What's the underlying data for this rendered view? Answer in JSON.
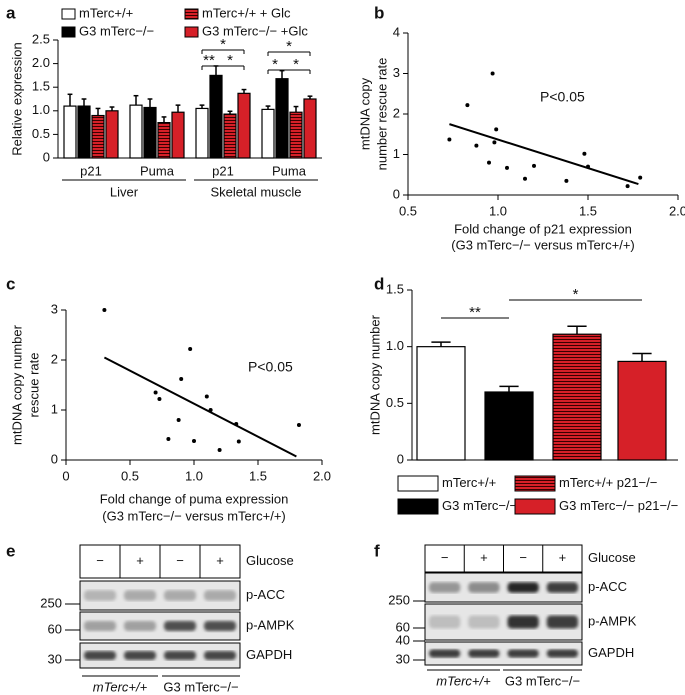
{
  "panel_labels": [
    "a",
    "b",
    "c",
    "d",
    "e",
    "f"
  ],
  "chart_data": [
    {
      "type": "bar",
      "ylabel": "Relative expression",
      "categories": [
        "p21",
        "Puma",
        "p21",
        "Puma"
      ],
      "groups": [
        "Liver",
        "Skeletal muscle"
      ],
      "ylim": [
        0,
        2.5
      ],
      "yticks": [
        0,
        0.5,
        {
          "value": 1,
          "label": "1.0"
        },
        1.5,
        {
          "value": 2,
          "label": "2.0"
        },
        2.5
      ],
      "series": [
        {
          "name": "mTerc+/+",
          "color": "#ffffff",
          "hatch": false,
          "values": [
            1.1,
            1.12,
            1.05,
            1.03
          ],
          "errors": [
            0.25,
            0.2,
            0.07,
            0.07
          ]
        },
        {
          "name": "G3 mTerc−/−",
          "color": "#000000",
          "hatch": false,
          "values": [
            1.1,
            1.07,
            1.75,
            1.68
          ],
          "errors": [
            0.15,
            0.18,
            0.2,
            0.17
          ]
        },
        {
          "name": "mTerc+/+ + Glc",
          "color": "#d62028",
          "hatch": true,
          "values": [
            0.9,
            0.75,
            0.93,
            0.97
          ],
          "errors": [
            0.15,
            0.12,
            0.06,
            0.12
          ]
        },
        {
          "name": "G3 mTerc−/− +Glc",
          "color": "#d62028",
          "hatch": false,
          "values": [
            1.0,
            0.97,
            1.37,
            1.25
          ],
          "errors": [
            0.08,
            0.15,
            0.08,
            0.06
          ]
        }
      ],
      "annotations": [
        "*",
        "**",
        "*",
        "*",
        "*",
        "*"
      ]
    },
    {
      "type": "scatter",
      "ylabel": [
        "mtDNA copy",
        "number rescue rate"
      ],
      "xlabel": [
        "Fold change of p21 expression",
        "(G3 mTerc−/− versus mTerc+/+)"
      ],
      "xlim": [
        0.5,
        2.0
      ],
      "xticks": [
        0.5,
        {
          "value": 1,
          "label": "1.0"
        },
        1.5,
        {
          "value": 2,
          "label": "2.0"
        }
      ],
      "ylim": [
        0,
        4
      ],
      "yticks": [
        0,
        1,
        2,
        3,
        4
      ],
      "x": [
        0.73,
        0.83,
        0.88,
        0.95,
        0.97,
        0.98,
        0.99,
        1.05,
        1.15,
        1.2,
        1.38,
        1.48,
        1.5,
        1.72,
        1.79
      ],
      "y": [
        1.37,
        2.22,
        1.22,
        0.8,
        3.0,
        1.3,
        1.62,
        0.67,
        0.4,
        0.72,
        0.35,
        1.02,
        0.7,
        0.22,
        0.43
      ],
      "fit": {
        "x": [
          0.73,
          1.78
        ],
        "y": [
          1.75,
          0.27
        ]
      },
      "annotation": "P<0.05"
    },
    {
      "type": "scatter",
      "ylabel": [
        "mtDNA copy number",
        "rescue rate"
      ],
      "xlabel": [
        "Fold change of puma expression",
        "(G3 mTerc−/− versus mTerc+/+)"
      ],
      "xlim": [
        0,
        2.0
      ],
      "xticks": [
        0,
        0.5,
        {
          "value": 1,
          "label": "1.0"
        },
        1.5,
        {
          "value": 2,
          "label": "2.0"
        }
      ],
      "ylim": [
        0,
        3
      ],
      "yticks": [
        0,
        1,
        2,
        3
      ],
      "x": [
        0.3,
        0.7,
        0.73,
        0.8,
        0.88,
        0.9,
        0.97,
        1.0,
        1.1,
        1.13,
        1.2,
        1.33,
        1.35,
        1.82
      ],
      "y": [
        3.0,
        1.35,
        1.22,
        0.42,
        0.8,
        1.62,
        2.22,
        0.38,
        1.27,
        1.0,
        0.2,
        0.72,
        0.37,
        0.7
      ],
      "fit": {
        "x": [
          0.3,
          1.8
        ],
        "y": [
          2.05,
          0.07
        ]
      },
      "annotation": "P<0.05"
    },
    {
      "type": "bar",
      "ylabel": "mtDNA copy number",
      "ylim": [
        0,
        1.5
      ],
      "yticks": [
        0,
        0.5,
        {
          "value": 1,
          "label": "1.0"
        },
        1.5
      ],
      "series": [
        {
          "name": "mTerc+/+",
          "color": "#ffffff",
          "hatch": false,
          "values": [
            1.0
          ],
          "errors": [
            0.04
          ]
        },
        {
          "name": "G3 mTerc−/−",
          "color": "#000000",
          "hatch": false,
          "values": [
            0.6
          ],
          "errors": [
            0.05
          ]
        },
        {
          "name": "mTerc+/+  p21−/−",
          "color": "#d62028",
          "hatch": true,
          "values": [
            1.11
          ],
          "errors": [
            0.07
          ]
        },
        {
          "name": "G3 mTerc−/−  p21−/−",
          "color": "#d62028",
          "hatch": false,
          "values": [
            0.87
          ],
          "errors": [
            0.07
          ]
        }
      ],
      "annotations": [
        "**",
        "*"
      ]
    }
  ],
  "blots": [
    {
      "lanes": [
        "−",
        "+",
        "−",
        "+"
      ],
      "condition": "Glucose",
      "rows": [
        "p-ACC",
        "p-AMPK",
        "GAPDH"
      ],
      "markers": [
        250,
        60,
        30
      ],
      "genotypes": [
        "mTerc+/+",
        "G3 mTerc−/−"
      ]
    },
    {
      "lanes": [
        "−",
        "+",
        "−",
        "+"
      ],
      "condition": "Glucose",
      "rows": [
        "p-ACC",
        "p-AMPK",
        "GAPDH"
      ],
      "markers": [
        250,
        60,
        40,
        30
      ],
      "genotypes": [
        "mTerc+/+",
        "G3 mTerc−/−"
      ]
    }
  ]
}
